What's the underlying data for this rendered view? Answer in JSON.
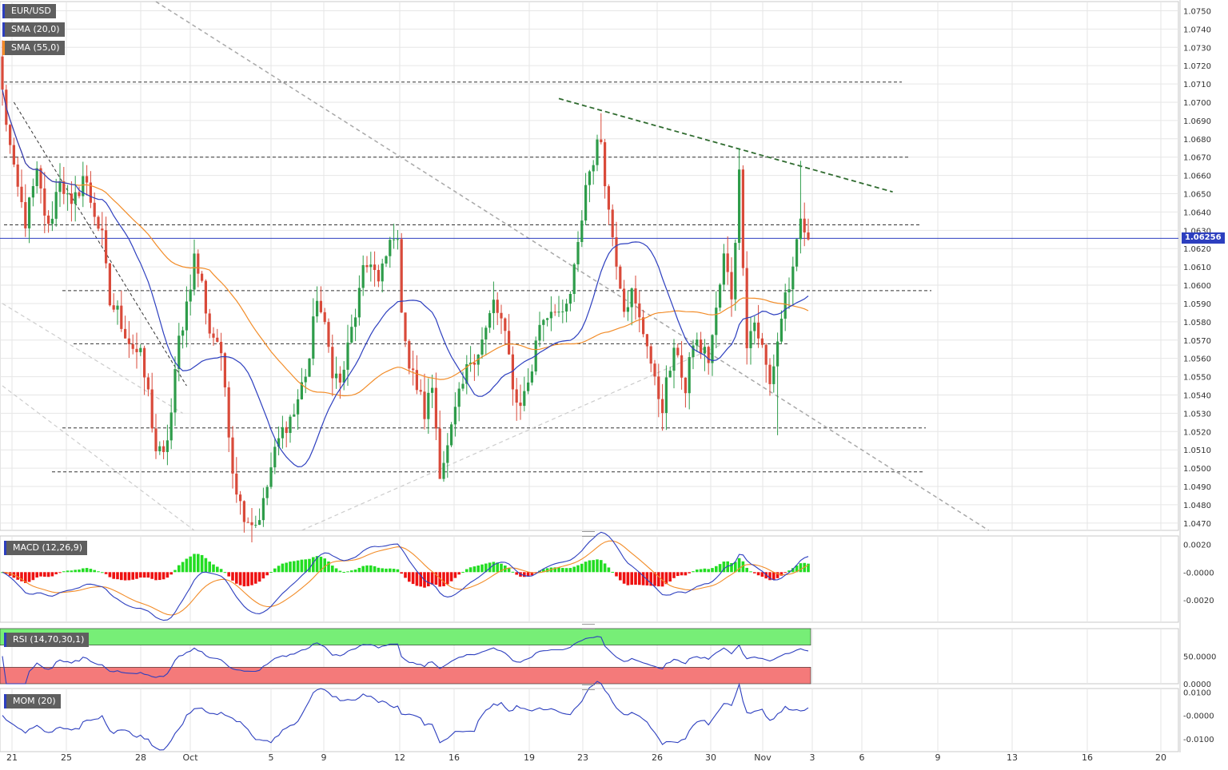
{
  "labels": {
    "pair": "EUR/USD",
    "sma20": "SMA (20,0)",
    "sma55": "SMA (55,0)",
    "macd": "MACD (12,26,9)",
    "rsi": "RSI (14,70,30,1)",
    "mom": "MOM (20)",
    "last_price": "1.06256"
  },
  "colors": {
    "bull": "#2e9c4a",
    "bear": "#d94a3a",
    "sma20": "#2d3fbf",
    "sma55": "#f28c28",
    "macd_hist_pos": "#22dd22",
    "macd_hist_neg": "#ee1111",
    "rsi_overbought_zone": "#77ee77",
    "rsi_oversold_zone": "#f47a7a",
    "trend_green": "#2f6b2f",
    "grid": "#e6e6e6"
  },
  "chart_data": [
    {
      "type": "candlestick",
      "name": "EUR/USD",
      "x_ticks": [
        "21",
        "25",
        "28",
        "Oct",
        "5",
        "9",
        "12",
        "16",
        "19",
        "23",
        "26",
        "30",
        "Nov",
        "3",
        "6",
        "9",
        "13",
        "16",
        "20"
      ],
      "y_ticks": [
        "1.0750",
        "1.0740",
        "1.0730",
        "1.0720",
        "1.0710",
        "1.0700",
        "1.0690",
        "1.0680",
        "1.0670",
        "1.0660",
        "1.0650",
        "1.0640",
        "1.0630",
        "1.0620",
        "1.0610",
        "1.0600",
        "1.0590",
        "1.0580",
        "1.0570",
        "1.0560",
        "1.0550",
        "1.0540",
        "1.0530",
        "1.0520",
        "1.0510",
        "1.0500",
        "1.0490",
        "1.0480",
        "1.0470"
      ],
      "ylim": [
        1.0466,
        1.0755
      ],
      "last_price": 1.06256,
      "close_anchors": [
        [
          0,
          1.0705
        ],
        [
          3,
          1.066
        ],
        [
          6,
          1.0635
        ],
        [
          9,
          1.066
        ],
        [
          12,
          1.063
        ],
        [
          15,
          1.066
        ],
        [
          18,
          1.064
        ],
        [
          21,
          1.066
        ],
        [
          24,
          1.064
        ],
        [
          26,
          1.0625
        ],
        [
          28,
          1.059
        ],
        [
          30,
          1.0585
        ],
        [
          33,
          1.057
        ],
        [
          36,
          1.056
        ],
        [
          38,
          1.054
        ],
        [
          40,
          1.051
        ],
        [
          42,
          1.0505
        ],
        [
          44,
          1.053
        ],
        [
          46,
          1.057
        ],
        [
          48,
          1.059
        ],
        [
          50,
          1.0615
        ],
        [
          52,
          1.06
        ],
        [
          54,
          1.0575
        ],
        [
          56,
          1.057
        ],
        [
          58,
          1.0545
        ],
        [
          60,
          1.05
        ],
        [
          62,
          1.048
        ],
        [
          64,
          1.0473
        ],
        [
          66,
          1.047
        ],
        [
          68,
          1.048
        ],
        [
          70,
          1.05
        ],
        [
          72,
          1.0515
        ],
        [
          74,
          1.0525
        ],
        [
          76,
          1.053
        ],
        [
          78,
          1.0545
        ],
        [
          80,
          1.056
        ],
        [
          82,
          1.0595
        ],
        [
          84,
          1.0575
        ],
        [
          86,
          1.0555
        ],
        [
          88,
          1.0545
        ],
        [
          90,
          1.0565
        ],
        [
          92,
          1.0585
        ],
        [
          94,
          1.0605
        ],
        [
          96,
          1.0615
        ],
        [
          98,
          1.06
        ],
        [
          100,
          1.0615
        ],
        [
          102,
          1.063
        ],
        [
          103,
          1.062
        ],
        [
          104,
          1.059
        ],
        [
          106,
          1.0555
        ],
        [
          108,
          1.0545
        ],
        [
          110,
          1.053
        ],
        [
          112,
          1.0545
        ],
        [
          114,
          1.05
        ],
        [
          116,
          1.051
        ],
        [
          118,
          1.053
        ],
        [
          120,
          1.0545
        ],
        [
          122,
          1.056
        ],
        [
          124,
          1.0565
        ],
        [
          126,
          1.0575
        ],
        [
          128,
          1.059
        ],
        [
          130,
          1.058
        ],
        [
          132,
          1.056
        ],
        [
          134,
          1.0535
        ],
        [
          136,
          1.054
        ],
        [
          138,
          1.0555
        ],
        [
          140,
          1.058
        ],
        [
          142,
          1.0585
        ],
        [
          144,
          1.059
        ],
        [
          146,
          1.058
        ],
        [
          148,
          1.0595
        ],
        [
          150,
          1.062
        ],
        [
          152,
          1.0655
        ],
        [
          154,
          1.067
        ],
        [
          156,
          1.068
        ],
        [
          158,
          1.064
        ],
        [
          160,
          1.0615
        ],
        [
          162,
          1.059
        ],
        [
          164,
          1.0595
        ],
        [
          166,
          1.058
        ],
        [
          168,
          1.057
        ],
        [
          170,
          1.0545
        ],
        [
          172,
          1.0535
        ],
        [
          174,
          1.0555
        ],
        [
          176,
          1.0565
        ],
        [
          178,
          1.054
        ],
        [
          180,
          1.057
        ],
        [
          182,
          1.0565
        ],
        [
          184,
          1.056
        ],
        [
          186,
          1.0585
        ],
        [
          188,
          1.0615
        ],
        [
          190,
          1.0595
        ],
        [
          192,
          1.066
        ],
        [
          194,
          1.057
        ],
        [
          196,
          1.058
        ],
        [
          198,
          1.0565
        ],
        [
          200,
          1.0545
        ],
        [
          202,
          1.057
        ],
        [
          204,
          1.0595
        ],
        [
          206,
          1.0605
        ],
        [
          208,
          1.0635
        ],
        [
          210,
          1.0625
        ]
      ],
      "support_resistance_levels": [
        1.0711,
        1.067,
        1.0633,
        1.0597,
        1.0568,
        1.0522,
        1.0498
      ],
      "trendlines": [
        {
          "style": "dashed-green",
          "from": [
            145,
            1.0702
          ],
          "to": [
            232,
            1.0651
          ]
        },
        {
          "style": "dashed-black",
          "from": [
            3,
            1.07
          ],
          "to": [
            48,
            1.0545
          ]
        },
        {
          "style": "dashed-gray",
          "from": [
            40,
            1.0755
          ],
          "to": [
            257,
            1.0466
          ]
        },
        {
          "style": "dashed-lightgray",
          "from": [
            0,
            1.059
          ],
          "to": [
            47,
            1.053
          ]
        },
        {
          "style": "dashed-lightgray",
          "from": [
            0,
            1.0545
          ],
          "to": [
            50,
            1.0466
          ]
        },
        {
          "style": "dashed-lightgray",
          "from": [
            78,
            1.0466
          ],
          "to": [
            190,
            1.057
          ]
        }
      ]
    },
    {
      "type": "histogram+line",
      "name": "MACD (12,26,9)",
      "y_ticks": [
        "0.0020",
        "-0.0000",
        "-0.0020"
      ],
      "ylim": [
        -0.0036,
        0.0026
      ]
    },
    {
      "type": "line",
      "name": "RSI (14,70,30,1)",
      "y_ticks": [
        "50.0000",
        "0.0000"
      ],
      "ylim": [
        0,
        100
      ],
      "zones": {
        "overbought": 70,
        "oversold": 30
      }
    },
    {
      "type": "line",
      "name": "MOM (20)",
      "y_ticks": [
        "0.0100",
        "-0.0000",
        "-0.0100"
      ],
      "ylim": [
        -0.0155,
        0.0115
      ]
    }
  ]
}
